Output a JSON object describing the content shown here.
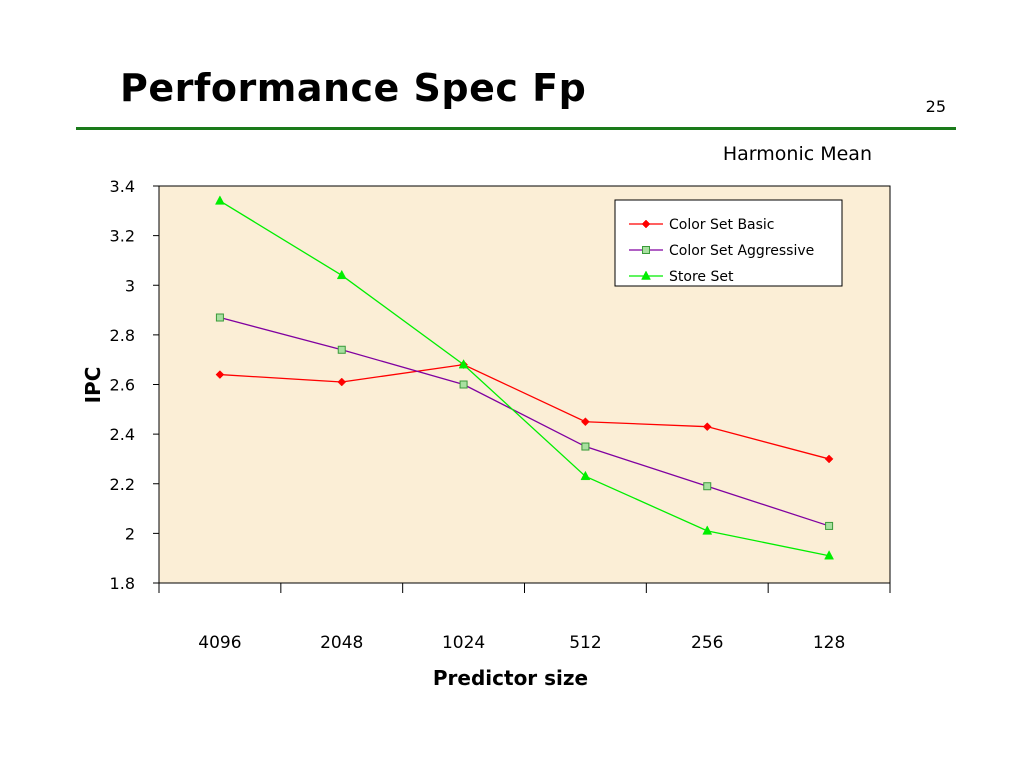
{
  "slide": {
    "title": "Performance Spec Fp",
    "page_number": "25"
  },
  "colors": {
    "title_rule": "#1a7a1a",
    "plot_background": "#fbeed6"
  },
  "chart_data": {
    "type": "line",
    "title": "Harmonic Mean",
    "xlabel": "Predictor size",
    "ylabel": "IPC",
    "categories": [
      "4096",
      "2048",
      "1024",
      "512",
      "256",
      "128"
    ],
    "ylim": [
      1.8,
      3.4
    ],
    "yticks": [
      1.8,
      2,
      2.2,
      2.4,
      2.6,
      2.8,
      3,
      3.2,
      3.4
    ],
    "ytick_labels": [
      "1.8",
      "2",
      "2.2",
      "2.4",
      "2.6",
      "2.8",
      "3",
      "3.2",
      "3.4"
    ],
    "grid": false,
    "legend_position": "top-right",
    "series": [
      {
        "name": "Color Set Basic",
        "color": "#ff0000",
        "marker": "diamond",
        "values": [
          2.64,
          2.61,
          2.68,
          2.45,
          2.43,
          2.3
        ]
      },
      {
        "name": "Color Set Aggressive",
        "color": "#8000a0",
        "marker": "square",
        "values": [
          2.87,
          2.74,
          2.6,
          2.35,
          2.19,
          2.03
        ]
      },
      {
        "name": "Store Set",
        "color": "#00ee00",
        "marker": "triangle",
        "values": [
          3.34,
          3.04,
          2.68,
          2.23,
          2.01,
          1.91
        ]
      }
    ]
  }
}
